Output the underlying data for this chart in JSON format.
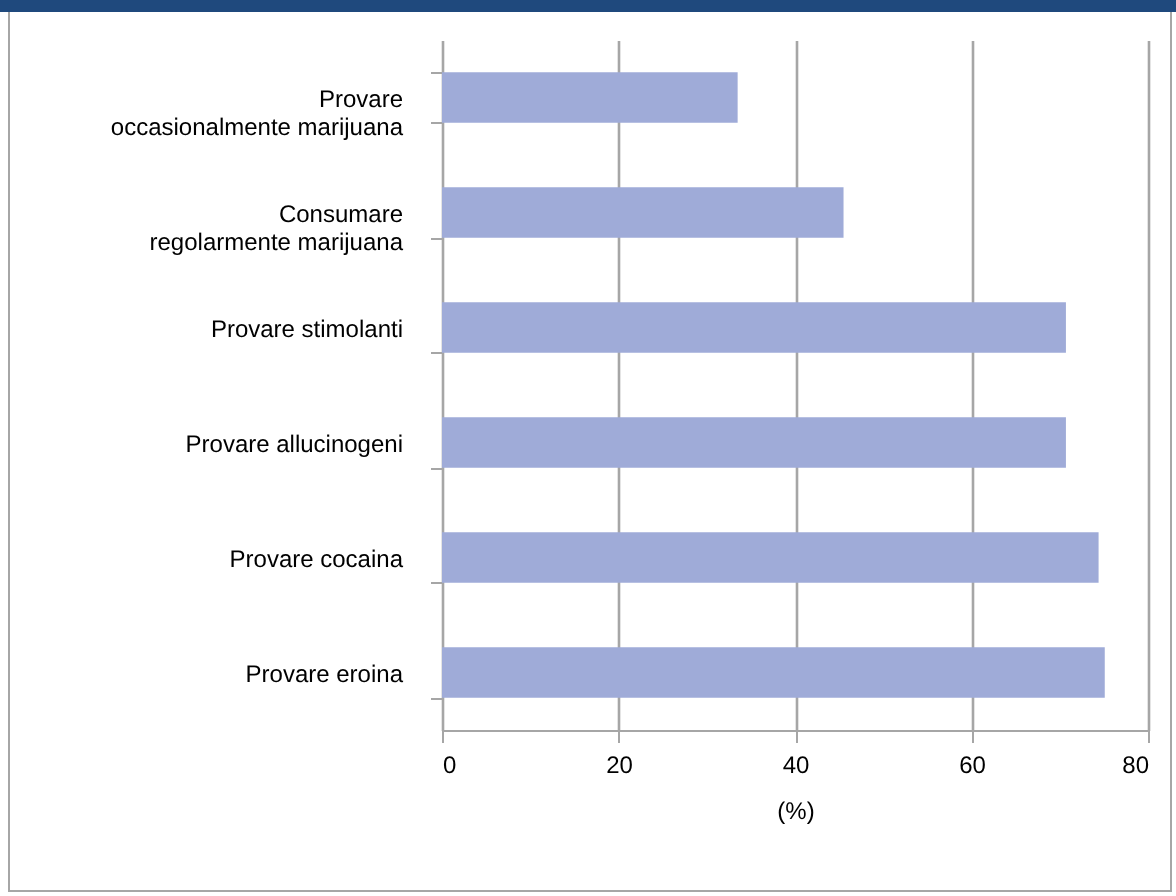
{
  "chart_data": {
    "type": "bar",
    "orientation": "horizontal",
    "categories": [
      "Provare\noccasionalmente marijuana",
      "Consumare\nregolarmente marijuana",
      "Provare stimolanti",
      "Provare allucinogeni",
      "Provare cocaina",
      "Provare eroina"
    ],
    "values": [
      33.5,
      45.5,
      70.7,
      70.7,
      74.4,
      75.1
    ],
    "color": "#9fabd8",
    "xlabel": "(%)",
    "xlim": [
      0,
      80
    ],
    "xticks": [
      0,
      20,
      40,
      60,
      80
    ],
    "grid": "x"
  }
}
